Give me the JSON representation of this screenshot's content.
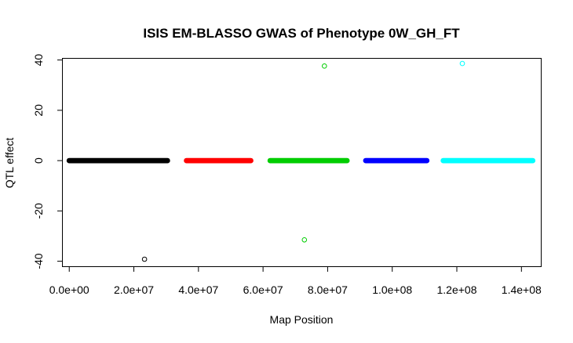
{
  "chart_data": {
    "type": "scatter",
    "title": "ISIS EM-BLASSO GWAS of Phenotype 0W_GH_FT",
    "xlabel": "Map Position",
    "ylabel": "QTL effect",
    "xlim": [
      -2000000,
      146000000
    ],
    "ylim": [
      -42,
      40.5
    ],
    "x_ticks": [
      {
        "value": 0,
        "label": "0.0e+00"
      },
      {
        "value": 20000000,
        "label": "2.0e+07"
      },
      {
        "value": 40000000,
        "label": "4.0e+07"
      },
      {
        "value": 60000000,
        "label": "6.0e+07"
      },
      {
        "value": 80000000,
        "label": "8.0e+07"
      },
      {
        "value": 100000000,
        "label": "1.0e+08"
      },
      {
        "value": 120000000,
        "label": "1.2e+08"
      },
      {
        "value": 140000000,
        "label": "1.4e+08"
      }
    ],
    "y_ticks": [
      {
        "value": -40,
        "label": "-40"
      },
      {
        "value": -20,
        "label": "-20"
      },
      {
        "value": 0,
        "label": "0"
      },
      {
        "value": 20,
        "label": "20"
      },
      {
        "value": 40,
        "label": "40"
      }
    ],
    "grid": false,
    "legend": "none",
    "series": [
      {
        "color": "#000000",
        "x_range": [
          0,
          30400000
        ],
        "baseline_y": 0,
        "points": [
          {
            "x": 23300000,
            "y": -39.2
          }
        ]
      },
      {
        "color": "#ff0000",
        "x_range": [
          36300000,
          56200000
        ],
        "baseline_y": 0,
        "points": []
      },
      {
        "color": "#00cd00",
        "x_range": [
          62200000,
          86000000
        ],
        "baseline_y": 0,
        "points": [
          {
            "x": 79000000,
            "y": 37.6
          },
          {
            "x": 72800000,
            "y": -31.5
          }
        ]
      },
      {
        "color": "#0000ff",
        "x_range": [
          91800000,
          110700000
        ],
        "baseline_y": 0,
        "points": []
      },
      {
        "color": "#00ffff",
        "x_range": [
          115800000,
          143500000
        ],
        "baseline_y": 0,
        "points": [
          {
            "x": 121700000,
            "y": 38.6
          }
        ]
      }
    ]
  }
}
